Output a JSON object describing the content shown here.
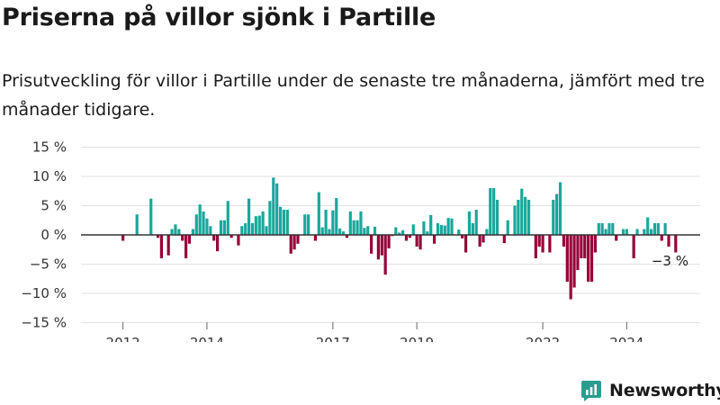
{
  "title": "Priserna på villor sjönk i Partille",
  "subtitle": "Prisutveckling för villor i Partille under de senaste tre månaderna, jämfört med tre månader tidigare.",
  "brand": {
    "name": "Newsworthy",
    "color": "#2a9d8f",
    "icon": "newsworthy-logo-icon"
  },
  "colors": {
    "positive": "#1aa79c",
    "negative": "#960038",
    "grid": "#e2e2e2",
    "zero": "#333333",
    "axis_text": "#333333"
  },
  "chart_data": {
    "type": "bar",
    "title": "",
    "xlabel": "",
    "ylabel": "",
    "ylim": [
      -15,
      15
    ],
    "y_ticks": [
      {
        "value": 15,
        "label": "15 %"
      },
      {
        "value": 10,
        "label": "10 %"
      },
      {
        "value": 5,
        "label": "5 %"
      },
      {
        "value": 0,
        "label": "0 %"
      },
      {
        "value": -5,
        "label": "−5 %"
      },
      {
        "value": -10,
        "label": "−10 %"
      },
      {
        "value": -15,
        "label": "−15 %"
      }
    ],
    "x_ticks": [
      {
        "year": 2012,
        "label": "2012"
      },
      {
        "year": 2014,
        "label": "2014"
      },
      {
        "year": 2017,
        "label": "2017"
      },
      {
        "year": 2019,
        "label": "2019"
      },
      {
        "year": 2022,
        "label": "2022"
      },
      {
        "year": 2024,
        "label": "2024"
      }
    ],
    "x_start": "2011-01",
    "x_end": "2025-10",
    "grid": true,
    "annotation": {
      "text": "−3 %",
      "value": -3
    },
    "series": [
      {
        "start": "2012-01",
        "values": [
          -1,
          0,
          0,
          0,
          3.5,
          0,
          0,
          0,
          6.2,
          0,
          -0.5,
          -4,
          0,
          -3.5,
          1,
          1.8,
          1,
          -1,
          -4,
          -1.5,
          1,
          3.5,
          5.2,
          4,
          2.8,
          1.5,
          -1,
          -2.8,
          2.5,
          2.5,
          5.8,
          -0.5,
          0,
          -1.8,
          1.5,
          2,
          6.2,
          2,
          3.2,
          3.3,
          4,
          1.5,
          5.8,
          9.8,
          8.8,
          4.8,
          4.3,
          4.3,
          -3.2,
          -2.5,
          -1.5,
          0,
          3.5,
          3.5,
          0,
          -1,
          7.3,
          1.3,
          4.3,
          1,
          4.2,
          6.3,
          1.1,
          0.6,
          -0.5,
          4,
          2.5,
          2.5,
          4,
          1.2,
          1.5,
          -3.2,
          1.4,
          -4.2,
          -3.5,
          -6.8,
          -2.3,
          -0.2,
          1.3,
          0.4,
          0.8,
          -1,
          -0.5,
          1.8,
          -2,
          -2.5,
          2.3,
          0.6,
          3.4,
          -1.5,
          2,
          1.7,
          1.6,
          2.9,
          2.8,
          0,
          0.9,
          -0.6,
          -3,
          4,
          2,
          4.3,
          -2,
          -1.3,
          1,
          8,
          8,
          6,
          0,
          -1.4,
          2.5,
          0,
          5,
          6,
          7.9,
          6.5,
          6,
          0,
          -4,
          -2,
          -3,
          0,
          -3,
          6,
          7,
          9,
          -2,
          -8,
          -11,
          -9,
          -6,
          -4,
          -4,
          -8,
          -8,
          -3,
          2,
          2,
          1,
          2,
          2,
          -1,
          0,
          1,
          1,
          0,
          -4,
          1,
          0,
          1,
          3,
          1,
          2,
          2,
          -1,
          2,
          -2,
          0,
          -3
        ]
      }
    ]
  }
}
